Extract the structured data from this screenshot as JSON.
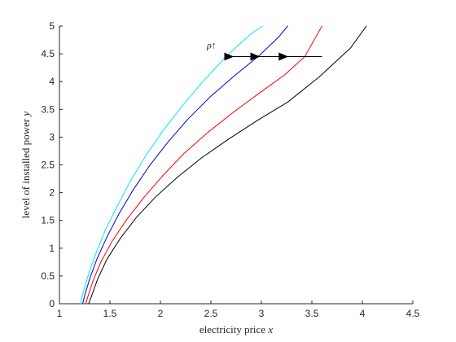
{
  "chart_data": {
    "type": "line",
    "title": "",
    "xlabel_text": "electricity price ",
    "xlabel_var": "x",
    "ylabel_text": "level of installed power ",
    "ylabel_var": "y",
    "xlim": [
      1,
      4.5
    ],
    "ylim": [
      0,
      5
    ],
    "x_ticks": [
      1,
      1.5,
      2,
      2.5,
      3,
      3.5,
      4,
      4.5
    ],
    "y_ticks": [
      0,
      0.5,
      1,
      1.5,
      2,
      2.5,
      3,
      3.5,
      4,
      4.5,
      5
    ],
    "x_tick_labels": [
      "1",
      "1.5",
      "2",
      "2.5",
      "3",
      "3.5",
      "4",
      "4.5"
    ],
    "y_tick_labels": [
      "0",
      "0.5",
      "1",
      "1.5",
      "2",
      "2.5",
      "3",
      "3.5",
      "4",
      "4.5",
      "5"
    ],
    "grid": false,
    "legend": false,
    "series": [
      {
        "color": "#00e5ff",
        "x": [
          1.21,
          1.22,
          1.25,
          1.3,
          1.37,
          1.46,
          1.57,
          1.7,
          1.85,
          2.02,
          2.21,
          2.42,
          2.65,
          2.89,
          3.01
        ],
        "y": [
          0,
          0.1,
          0.3,
          0.6,
          0.95,
          1.35,
          1.75,
          2.2,
          2.65,
          3.1,
          3.55,
          4.0,
          4.45,
          4.85,
          5.0
        ]
      },
      {
        "color": "#0000cc",
        "x": [
          1.23,
          1.25,
          1.3,
          1.37,
          1.47,
          1.59,
          1.73,
          1.89,
          2.07,
          2.27,
          2.49,
          2.73,
          2.98,
          3.17,
          3.26
        ],
        "y": [
          0,
          0.15,
          0.45,
          0.8,
          1.2,
          1.62,
          2.05,
          2.48,
          2.9,
          3.32,
          3.72,
          4.1,
          4.47,
          4.8,
          5.0
        ]
      },
      {
        "color": "#ff0000",
        "x": [
          1.26,
          1.28,
          1.33,
          1.41,
          1.52,
          1.66,
          1.83,
          2.02,
          2.23,
          2.46,
          2.71,
          2.97,
          3.23,
          3.43,
          3.6
        ],
        "y": [
          0,
          0.12,
          0.4,
          0.75,
          1.12,
          1.5,
          1.9,
          2.3,
          2.7,
          3.07,
          3.43,
          3.78,
          4.12,
          4.45,
          5.0
        ]
      },
      {
        "color": "#000000",
        "x": [
          1.29,
          1.32,
          1.38,
          1.47,
          1.6,
          1.76,
          1.95,
          2.17,
          2.41,
          2.68,
          2.96,
          3.26,
          3.57,
          3.88,
          4.04
        ],
        "y": [
          0,
          0.15,
          0.45,
          0.8,
          1.17,
          1.55,
          1.92,
          2.28,
          2.63,
          2.97,
          3.3,
          3.63,
          4.08,
          4.6,
          5.0
        ]
      }
    ],
    "annotation": {
      "label": "ρ↑",
      "label_x": 2.46,
      "label_y": 4.6,
      "arrows": [
        {
          "from_x": 3.6,
          "to_x": 3.26,
          "y": 4.45
        },
        {
          "from_x": 3.26,
          "to_x": 2.98,
          "y": 4.45
        },
        {
          "from_x": 2.98,
          "to_x": 2.72,
          "y": 4.45
        }
      ]
    }
  }
}
